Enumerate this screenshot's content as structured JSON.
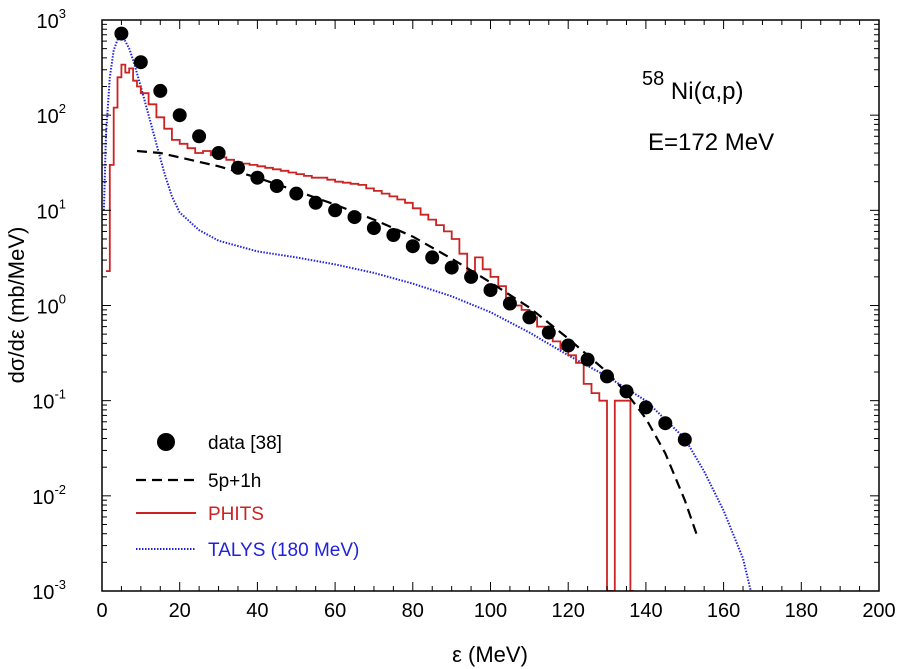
{
  "chart_data": {
    "type": "line",
    "xlabel": "ε (MeV)",
    "ylabel": "dσ/dε (mb/MeV)",
    "xlim": [
      0,
      200
    ],
    "ylim": [
      0.001,
      1000
    ],
    "yscale": "log",
    "grid": false,
    "legend_position": "bottom-left",
    "x_ticks": [
      "0",
      "20",
      "40",
      "60",
      "80",
      "100",
      "120",
      "140",
      "160",
      "180",
      "200"
    ],
    "y_ticks": [
      {
        "base": "10",
        "exp": "-3"
      },
      {
        "base": "10",
        "exp": "-2"
      },
      {
        "base": "10",
        "exp": "-1"
      },
      {
        "base": "10",
        "exp": "0"
      },
      {
        "base": "10",
        "exp": "1"
      },
      {
        "base": "10",
        "exp": "2"
      },
      {
        "base": "10",
        "exp": "3"
      }
    ],
    "annotations": {
      "reaction_mass": "58",
      "reaction": "Ni(α,p)",
      "energy": "E=172 MeV"
    },
    "colors": {
      "data": "#000000",
      "model_5p1h": "#000000",
      "phits": "#cc2222",
      "talys": "#2222dd"
    },
    "series": [
      {
        "name": "data [38]",
        "style": "points",
        "x": [
          5,
          10,
          15,
          20,
          25,
          30,
          35,
          40,
          45,
          50,
          55,
          60,
          65,
          70,
          75,
          80,
          85,
          90,
          95,
          100,
          105,
          110,
          115,
          120,
          125,
          130,
          135,
          140,
          145,
          150
        ],
        "y": [
          720,
          360,
          180,
          100,
          60,
          40,
          28,
          22,
          18,
          15,
          12,
          10,
          8.5,
          6.5,
          5.5,
          4.2,
          3.2,
          2.5,
          2.0,
          1.45,
          1.05,
          0.75,
          0.52,
          0.38,
          0.27,
          0.18,
          0.125,
          0.085,
          0.058,
          0.039
        ]
      },
      {
        "name": "5p+1h",
        "style": "dashed",
        "x": [
          9,
          15,
          20,
          30,
          40,
          50,
          60,
          70,
          80,
          90,
          100,
          110,
          120,
          130,
          135,
          140,
          145,
          150,
          153
        ],
        "y": [
          42,
          40,
          36,
          29,
          22,
          16,
          11.5,
          8,
          5.3,
          3.1,
          1.75,
          0.95,
          0.45,
          0.2,
          0.12,
          0.065,
          0.028,
          0.009,
          0.004
        ]
      },
      {
        "name": "PHITS",
        "style": "step",
        "x": [
          1,
          2,
          3,
          4,
          5,
          6,
          7,
          8,
          9,
          10,
          12,
          14,
          16,
          18,
          20,
          22,
          24,
          26,
          28,
          30,
          32,
          34,
          36,
          38,
          40,
          42,
          44,
          46,
          48,
          50,
          52,
          54,
          56,
          58,
          60,
          62,
          64,
          66,
          68,
          70,
          72,
          74,
          76,
          78,
          80,
          82,
          84,
          86,
          88,
          90,
          92,
          94,
          96,
          98,
          100,
          102,
          104,
          106,
          108,
          110,
          112,
          114,
          116,
          118,
          120,
          122,
          124,
          126,
          128,
          130,
          132,
          134,
          136
        ],
        "y": [
          2.3,
          30,
          120,
          250,
          340,
          280,
          310,
          230,
          200,
          170,
          130,
          95,
          72,
          55,
          50,
          45,
          40,
          42,
          38,
          36,
          34,
          32,
          31,
          30,
          29,
          28,
          27,
          26,
          25,
          24,
          23,
          22,
          22,
          21,
          20,
          19.5,
          19,
          18.5,
          17,
          16,
          15,
          14,
          13,
          12,
          10.5,
          9,
          8,
          7,
          6,
          5,
          3.5,
          2.3,
          3.2,
          2.4,
          2.0,
          1.6,
          1.2,
          1.0,
          0.9,
          0.75,
          0.6,
          0.5,
          0.42,
          0.35,
          0.3,
          0.25,
          0.15,
          0.12,
          0.1,
          0.001,
          0.1,
          0.1,
          0.001
        ]
      },
      {
        "name": "TALYS (180 MeV)",
        "style": "dotted",
        "x": [
          0.5,
          1,
          2,
          3,
          4,
          5,
          6,
          7,
          8,
          10,
          12,
          14,
          16,
          18,
          20,
          25,
          30,
          40,
          50,
          60,
          70,
          80,
          90,
          100,
          110,
          120,
          130,
          140,
          150,
          155,
          160,
          165,
          167
        ],
        "y": [
          10,
          60,
          250,
          480,
          620,
          650,
          600,
          500,
          380,
          200,
          100,
          50,
          25,
          14,
          9.5,
          6.2,
          4.8,
          3.7,
          3.2,
          2.7,
          2.2,
          1.7,
          1.25,
          0.85,
          0.52,
          0.3,
          0.18,
          0.1,
          0.04,
          0.018,
          0.007,
          0.0022,
          0.001
        ]
      }
    ]
  }
}
